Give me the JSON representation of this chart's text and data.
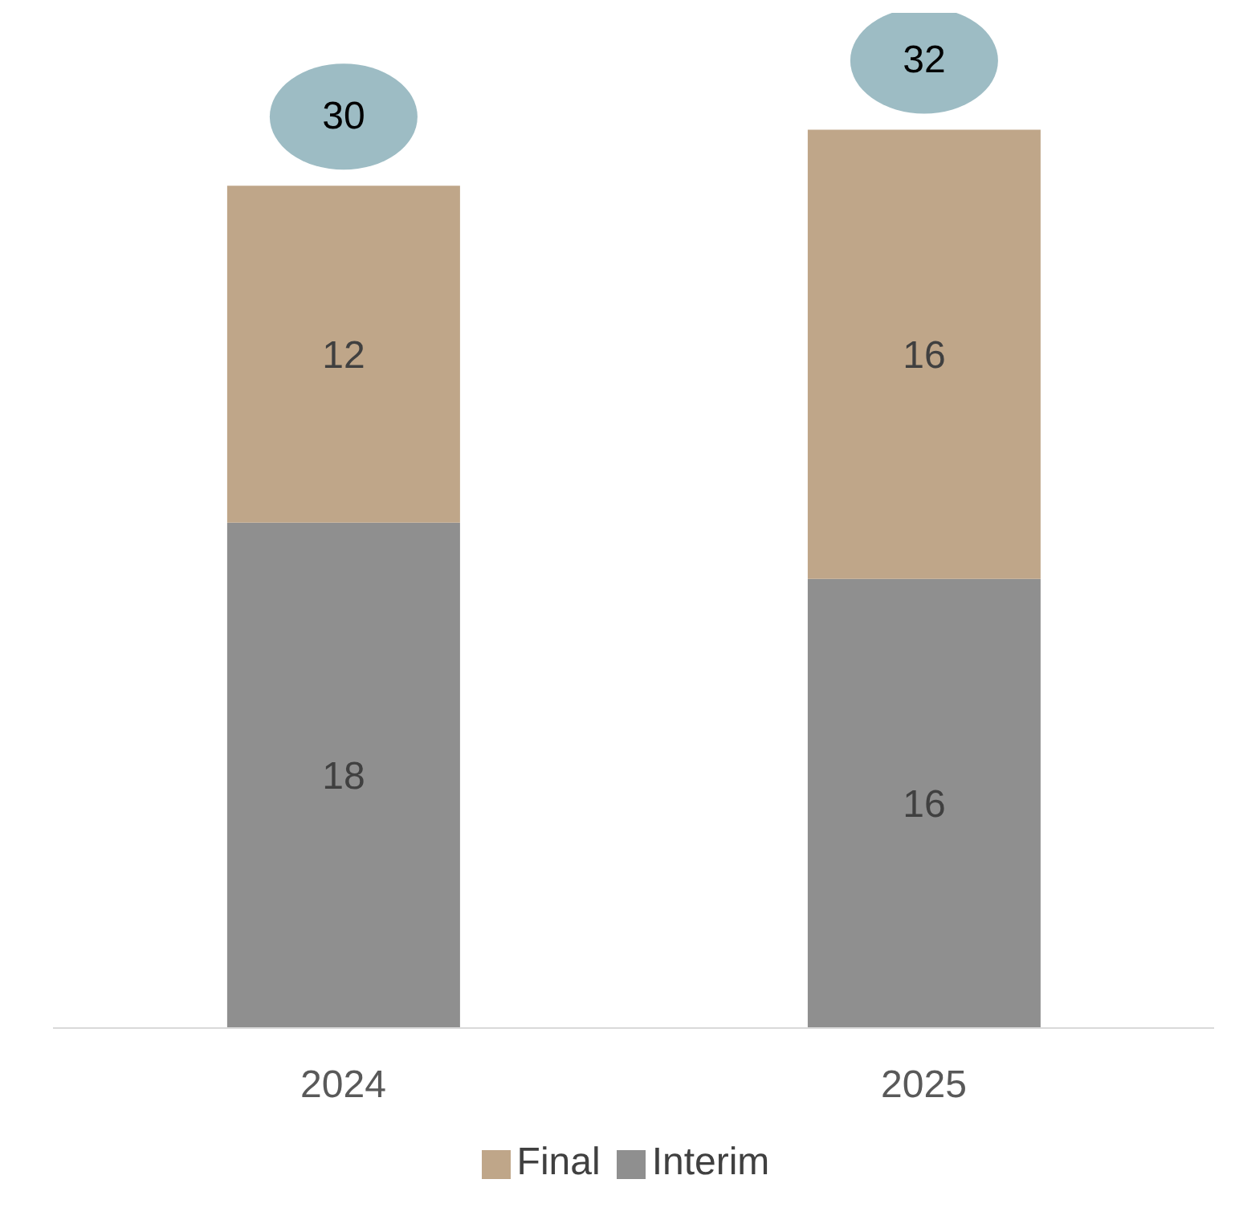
{
  "chart_data": {
    "type": "bar",
    "stacked": true,
    "categories": [
      "2024",
      "2025"
    ],
    "series": [
      {
        "name": "Interim",
        "color": "#8f8f8f",
        "values": [
          18,
          16
        ]
      },
      {
        "name": "Final",
        "color": "#bfa689",
        "values": [
          12,
          16
        ]
      }
    ],
    "data_labels": true,
    "totals": [
      "30",
      "32"
    ],
    "legend": "bottom",
    "grid": false
  }
}
